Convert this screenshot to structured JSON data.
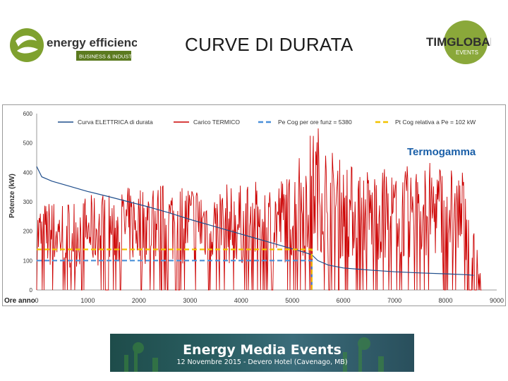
{
  "slide": {
    "title": "CURVE DI DURATA"
  },
  "logos": {
    "left_name": "energy efficiency",
    "left_tag": "BUSINESS & INDUSTRY",
    "right_name": "TIMGLOBAL",
    "right_tag": "EVENTS",
    "chart_brand": "Termogamma"
  },
  "banner": {
    "title": "Energy Media Events",
    "subtitle": "12 Novembre 2015 - Devero Hotel (Cavenago, MB)"
  },
  "colors": {
    "electric": "#1f4e8c",
    "thermal": "#cc0000",
    "pe_cog": "#4a90d9",
    "pt_cog": "#f2c200",
    "accent_green": "#7fa12f",
    "brand_blue": "#1a5fa8"
  },
  "chart_data": {
    "type": "line",
    "ylabel": "Potenze (kW)",
    "xlabel": "Ore anno",
    "xlim": [
      0,
      9000
    ],
    "ylim": [
      0,
      600
    ],
    "xticks": [
      "0",
      "1000",
      "2000",
      "3000",
      "4000",
      "5000",
      "6000",
      "7000",
      "8000",
      "9000"
    ],
    "yticks": [
      "0",
      "100",
      "200",
      "300",
      "400",
      "500",
      "600"
    ],
    "legend_position": "top",
    "series": [
      {
        "name": "Curva ELETTRICA di durata",
        "style": "solid",
        "x": [
          0,
          100,
          300,
          600,
          1000,
          1400,
          1800,
          2200,
          2600,
          3000,
          3400,
          3800,
          4200,
          4600,
          5000,
          5200,
          5380,
          5500,
          5700,
          6000,
          6500,
          7000,
          7500,
          8000,
          8400,
          8550
        ],
        "y": [
          420,
          385,
          370,
          355,
          335,
          318,
          300,
          282,
          262,
          240,
          220,
          200,
          180,
          160,
          140,
          130,
          120,
          100,
          85,
          75,
          68,
          62,
          58,
          55,
          52,
          50
        ]
      },
      {
        "name": "Carico TERMICO",
        "style": "noisy",
        "x": [
          0,
          500,
          1000,
          1500,
          2000,
          2500,
          3000,
          3500,
          4000,
          4500,
          5000,
          5300,
          5500,
          5700,
          6000,
          6500,
          7000,
          7500,
          8000,
          8400,
          8700
        ],
        "y": [
          200,
          210,
          215,
          225,
          240,
          245,
          250,
          245,
          240,
          250,
          270,
          350,
          380,
          330,
          290,
          280,
          275,
          290,
          295,
          270,
          30
        ]
      },
      {
        "name": "Pe Cog per ore funz = 5380",
        "style": "dashed",
        "x": [
          0,
          5380,
          5380
        ],
        "y": [
          100,
          100,
          0
        ]
      },
      {
        "name": "Pt Cog relativa a Pe = 102 kW",
        "style": "dashed",
        "x": [
          0,
          5380,
          5380
        ],
        "y": [
          138,
          138,
          0
        ]
      }
    ]
  }
}
